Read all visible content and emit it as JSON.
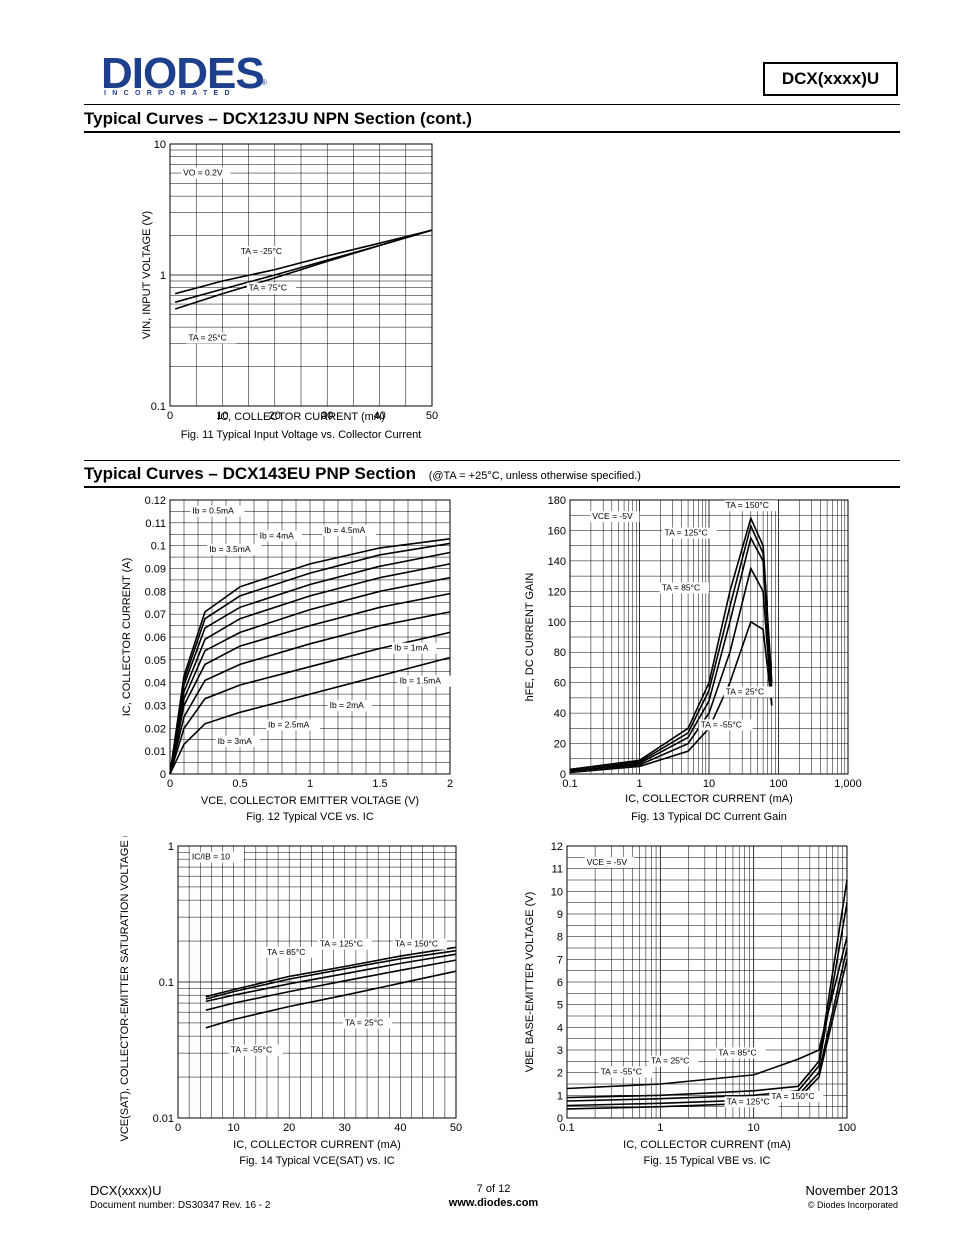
{
  "header": {
    "logo_text": "DIODES",
    "logo_sub": "INCORPORATED",
    "logo_reg": "®",
    "part_box": "DCX(xxxx)U"
  },
  "section1": {
    "title": "Typical Curves – DCX123JU  NPN Section   (cont.)"
  },
  "section2": {
    "title": "Typical Curves – DCX143EU  PNP Section",
    "note": "(@TA = +25°C, unless otherwise specified.)"
  },
  "footer": {
    "part": "DCX(xxxx)U",
    "docnum": "Document number: DS30347 Rev. 16 - 2",
    "page": "7 of 12",
    "url": "www.diodes.com",
    "date": "November 2013",
    "copyright": "© Diodes Incorporated"
  },
  "chart_data": [
    {
      "id": "fig11",
      "type": "line",
      "caption": "Fig. 11  Typical Input Voltage vs. Collector Current",
      "xlabel": "IC, COLLECTOR CURRENT (mA)",
      "ylabel": "VIN, INPUT VOLTAGE (V)",
      "xlim": [
        0,
        50
      ],
      "ylim": [
        0.1,
        10
      ],
      "yscale": "log",
      "xticks": [
        "0",
        "10",
        "20",
        "30",
        "40",
        "50"
      ],
      "yticks": [
        "0.1",
        "1",
        "10"
      ],
      "annotations": [
        "VO = 0.2V",
        "TA = -25°C",
        "TA = 75°C",
        "TA = 25°C"
      ],
      "series": [
        {
          "name": "TA = -25°C",
          "x": [
            1,
            10,
            20,
            30,
            40,
            50
          ],
          "y": [
            0.72,
            0.9,
            1.1,
            1.4,
            1.75,
            2.2
          ]
        },
        {
          "name": "TA = 25°C",
          "x": [
            1,
            10,
            20,
            30,
            40,
            50
          ],
          "y": [
            0.62,
            0.78,
            1.0,
            1.3,
            1.68,
            2.2
          ]
        },
        {
          "name": "TA = 75°C",
          "x": [
            1,
            10,
            20,
            30,
            40,
            50
          ],
          "y": [
            0.55,
            0.72,
            0.95,
            1.27,
            1.68,
            2.2
          ]
        }
      ]
    },
    {
      "id": "fig12",
      "type": "line",
      "caption": "Fig. 12 Typical VCE vs. IC",
      "xlabel": "VCE, COLLECTOR EMITTER VOLTAGE (V)",
      "ylabel": "IC, COLLECTOR CURRENT (A)",
      "xlim": [
        0,
        2
      ],
      "ylim": [
        0,
        0.12
      ],
      "xticks": [
        "0",
        "0.5",
        "1",
        "1.5",
        "2"
      ],
      "yticks": [
        "0",
        "0.01",
        "0.02",
        "0.03",
        "0.04",
        "0.05",
        "0.06",
        "0.07",
        "0.08",
        "0.09",
        "0.1",
        "0.11",
        "0.12"
      ],
      "annotations": [
        "Ib = 0.5mA",
        "Ib = 1mA",
        "Ib = 1.5mA",
        "Ib = 2mA",
        "Ib = 2.5mA",
        "Ib = 3mA",
        "Ib = 3.5mA",
        "Ib = 4mA",
        "Ib = 4.5mA"
      ],
      "series": [
        {
          "name": "Ib = 0.5mA",
          "x": [
            0,
            0.1,
            0.25,
            0.5,
            1,
            1.5,
            2
          ],
          "y": [
            0,
            0.013,
            0.022,
            0.027,
            0.035,
            0.043,
            0.051
          ]
        },
        {
          "name": "Ib = 1mA",
          "x": [
            0,
            0.1,
            0.25,
            0.5,
            1,
            1.5,
            2
          ],
          "y": [
            0,
            0.02,
            0.033,
            0.039,
            0.047,
            0.055,
            0.062
          ]
        },
        {
          "name": "Ib = 1.5mA",
          "x": [
            0,
            0.1,
            0.25,
            0.5,
            1,
            1.5,
            2
          ],
          "y": [
            0,
            0.025,
            0.041,
            0.048,
            0.057,
            0.065,
            0.071
          ]
        },
        {
          "name": "Ib = 2mA",
          "x": [
            0,
            0.1,
            0.25,
            0.5,
            1,
            1.5,
            2
          ],
          "y": [
            0,
            0.03,
            0.048,
            0.056,
            0.065,
            0.073,
            0.079
          ]
        },
        {
          "name": "Ib = 2.5mA",
          "x": [
            0,
            0.1,
            0.25,
            0.5,
            1,
            1.5,
            2
          ],
          "y": [
            0,
            0.033,
            0.054,
            0.062,
            0.072,
            0.08,
            0.086
          ]
        },
        {
          "name": "Ib = 3mA",
          "x": [
            0,
            0.1,
            0.25,
            0.5,
            1,
            1.5,
            2
          ],
          "y": [
            0,
            0.036,
            0.059,
            0.068,
            0.078,
            0.086,
            0.092
          ]
        },
        {
          "name": "Ib = 3.5mA",
          "x": [
            0,
            0.1,
            0.25,
            0.5,
            1,
            1.5,
            2
          ],
          "y": [
            0,
            0.039,
            0.064,
            0.073,
            0.083,
            0.091,
            0.097
          ]
        },
        {
          "name": "Ib = 4mA",
          "x": [
            0,
            0.1,
            0.25,
            0.5,
            1,
            1.5,
            2
          ],
          "y": [
            0,
            0.041,
            0.068,
            0.078,
            0.088,
            0.096,
            0.101
          ]
        },
        {
          "name": "Ib = 4.5mA",
          "x": [
            0,
            0.1,
            0.25,
            0.5,
            1,
            1.5,
            2
          ],
          "y": [
            0,
            0.043,
            0.071,
            0.082,
            0.092,
            0.099,
            0.103
          ]
        }
      ]
    },
    {
      "id": "fig13",
      "type": "line",
      "caption": "Fig. 13 Typical DC Current Gain",
      "xlabel": "IC, COLLECTOR CURRENT (mA)",
      "ylabel": "hFE, DC CURRENT GAIN",
      "xlim": [
        0.1,
        1000
      ],
      "xscale": "log",
      "ylim": [
        0,
        180
      ],
      "xticks": [
        "0.1",
        "1",
        "10",
        "100",
        "1,000"
      ],
      "yticks": [
        "0",
        "20",
        "40",
        "60",
        "80",
        "100",
        "120",
        "140",
        "160",
        "180"
      ],
      "annotations": [
        "VCE = -5V",
        "TA = 150°C",
        "TA = 125°C",
        "TA = 85°C",
        "TA = 25°C",
        "TA = -55°C"
      ],
      "series": [
        {
          "name": "TA = 150°C",
          "x": [
            0.1,
            1,
            5,
            10,
            20,
            40,
            60,
            80
          ],
          "y": [
            3,
            9,
            30,
            60,
            120,
            168,
            150,
            60
          ]
        },
        {
          "name": "TA = 125°C",
          "x": [
            0.1,
            1,
            5,
            10,
            20,
            40,
            60,
            80
          ],
          "y": [
            3,
            8,
            27,
            55,
            110,
            163,
            145,
            55
          ]
        },
        {
          "name": "TA = 85°C",
          "x": [
            0.1,
            1,
            5,
            10,
            20,
            40,
            60,
            80
          ],
          "y": [
            2,
            7,
            24,
            48,
            100,
            155,
            140,
            50
          ]
        },
        {
          "name": "TA = 25°C",
          "x": [
            0.1,
            1,
            5,
            10,
            20,
            40,
            60,
            80
          ],
          "y": [
            2,
            6,
            20,
            40,
            80,
            135,
            120,
            45
          ]
        },
        {
          "name": "TA = -55°C",
          "x": [
            0.1,
            1,
            5,
            10,
            20,
            40,
            60,
            80
          ],
          "y": [
            1,
            5,
            15,
            30,
            60,
            100,
            95,
            45
          ]
        }
      ]
    },
    {
      "id": "fig14",
      "type": "line",
      "caption": "Fig. 14 Typical VCE(SAT) vs. IC",
      "xlabel": "IC, COLLECTOR CURRENT (mA)",
      "ylabel": "VCE(SAT), COLLECTOR-EMITTER SATURATION VOLTAGE (V)",
      "xlim": [
        0,
        50
      ],
      "ylim": [
        0.01,
        1
      ],
      "yscale": "log",
      "xticks": [
        "0",
        "10",
        "20",
        "30",
        "40",
        "50"
      ],
      "yticks": [
        "0.01",
        "0.1",
        "1"
      ],
      "annotations": [
        "IC/IB = 10",
        "TA = 85°C",
        "TA = 125°C",
        "TA = 150°C",
        "TA = 25°C",
        "TA = -55°C"
      ],
      "series": [
        {
          "name": "TA = 150°C",
          "x": [
            5,
            10,
            20,
            30,
            40,
            50
          ],
          "y": [
            0.078,
            0.088,
            0.11,
            0.13,
            0.155,
            0.18
          ]
        },
        {
          "name": "TA = 125°C",
          "x": [
            5,
            10,
            20,
            30,
            40,
            50
          ],
          "y": [
            0.075,
            0.085,
            0.105,
            0.125,
            0.148,
            0.17
          ]
        },
        {
          "name": "TA = 85°C",
          "x": [
            5,
            10,
            20,
            30,
            40,
            50
          ],
          "y": [
            0.072,
            0.08,
            0.097,
            0.115,
            0.137,
            0.16
          ]
        },
        {
          "name": "TA = 25°C",
          "x": [
            5,
            10,
            20,
            30,
            40,
            50
          ],
          "y": [
            0.062,
            0.07,
            0.085,
            0.102,
            0.122,
            0.145
          ]
        },
        {
          "name": "TA = -55°C",
          "x": [
            5,
            10,
            20,
            30,
            40,
            50
          ],
          "y": [
            0.046,
            0.053,
            0.066,
            0.08,
            0.098,
            0.12
          ]
        }
      ]
    },
    {
      "id": "fig15",
      "type": "line",
      "caption": "Fig. 15 Typical VBE vs. IC",
      "xlabel": "IC, COLLECTOR CURRENT (mA)",
      "ylabel": "VBE, BASE-EMITTER VOLTAGE (V)",
      "xlim": [
        0.1,
        100
      ],
      "xscale": "log",
      "ylim": [
        0,
        12
      ],
      "xticks": [
        "0.1",
        "1",
        "10",
        "100"
      ],
      "yticks": [
        "0",
        "1",
        "2",
        "3",
        "4",
        "5",
        "6",
        "7",
        "8",
        "9",
        "10",
        "11",
        "12"
      ],
      "annotations": [
        "VCE = -5V",
        "TA = -55°C",
        "TA = 25°C",
        "TA = 85°C",
        "TA = 125°C",
        "TA = 150°C"
      ],
      "series": [
        {
          "name": "TA = -55°C",
          "x": [
            0.1,
            1,
            10,
            30,
            50,
            100
          ],
          "y": [
            0.9,
            1.0,
            1.2,
            1.4,
            2.5,
            10.5
          ]
        },
        {
          "name": "TA = 25°C",
          "x": [
            0.1,
            1,
            10,
            30,
            50,
            100
          ],
          "y": [
            0.75,
            0.85,
            1.0,
            1.2,
            2.3,
            9.5
          ]
        },
        {
          "name": "TA = 85°C",
          "x": [
            0.1,
            1,
            10,
            30,
            50,
            100
          ],
          "y": [
            1.3,
            1.5,
            1.9,
            2.6,
            3.0,
            8.0
          ]
        },
        {
          "name": "TA = 125°C",
          "x": [
            0.1,
            1,
            10,
            30,
            50,
            100
          ],
          "y": [
            0.55,
            0.65,
            0.8,
            1.0,
            2.0,
            7.5
          ]
        },
        {
          "name": "TA = 150°C",
          "x": [
            0.1,
            1,
            10,
            30,
            50,
            100
          ],
          "y": [
            0.4,
            0.5,
            0.65,
            0.85,
            1.8,
            7.0
          ]
        }
      ]
    }
  ]
}
